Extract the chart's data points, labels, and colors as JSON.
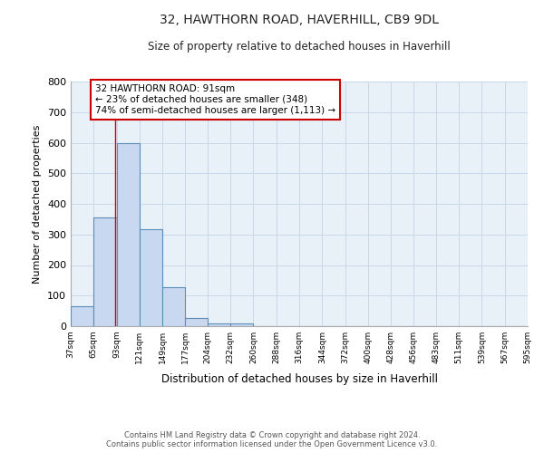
{
  "title1": "32, HAWTHORN ROAD, HAVERHILL, CB9 9DL",
  "title2": "Size of property relative to detached houses in Haverhill",
  "xlabel": "Distribution of detached houses by size in Haverhill",
  "ylabel": "Number of detached properties",
  "bin_edges": [
    37,
    65,
    93,
    121,
    149,
    177,
    204,
    232,
    260,
    288,
    316,
    344,
    372,
    400,
    428,
    456,
    483,
    511,
    539,
    567,
    595
  ],
  "bar_heights": [
    65,
    357,
    598,
    318,
    128,
    28,
    8,
    10,
    0,
    0,
    0,
    0,
    0,
    0,
    0,
    0,
    0,
    0,
    0,
    0
  ],
  "bar_color": "#c8d8f0",
  "bar_edge_color": "#5b8db8",
  "property_size": 91,
  "annotation_text": "32 HAWTHORN ROAD: 91sqm\n← 23% of detached houses are smaller (348)\n74% of semi-detached houses are larger (1,113) →",
  "annotation_box_color": "#cc0000",
  "vline_color": "#cc0000",
  "ylim": [
    0,
    800
  ],
  "yticks": [
    0,
    100,
    200,
    300,
    400,
    500,
    600,
    700,
    800
  ],
  "grid_color": "#c8d8e8",
  "plot_bg_color": "#e8f0f8",
  "fig_bg_color": "#ffffff",
  "footnote": "Contains HM Land Registry data © Crown copyright and database right 2024.\nContains public sector information licensed under the Open Government Licence v3.0.",
  "tick_labels": [
    "37sqm",
    "65sqm",
    "93sqm",
    "121sqm",
    "149sqm",
    "177sqm",
    "204sqm",
    "232sqm",
    "260sqm",
    "288sqm",
    "316sqm",
    "344sqm",
    "372sqm",
    "400sqm",
    "428sqm",
    "456sqm",
    "483sqm",
    "511sqm",
    "539sqm",
    "567sqm",
    "595sqm"
  ]
}
